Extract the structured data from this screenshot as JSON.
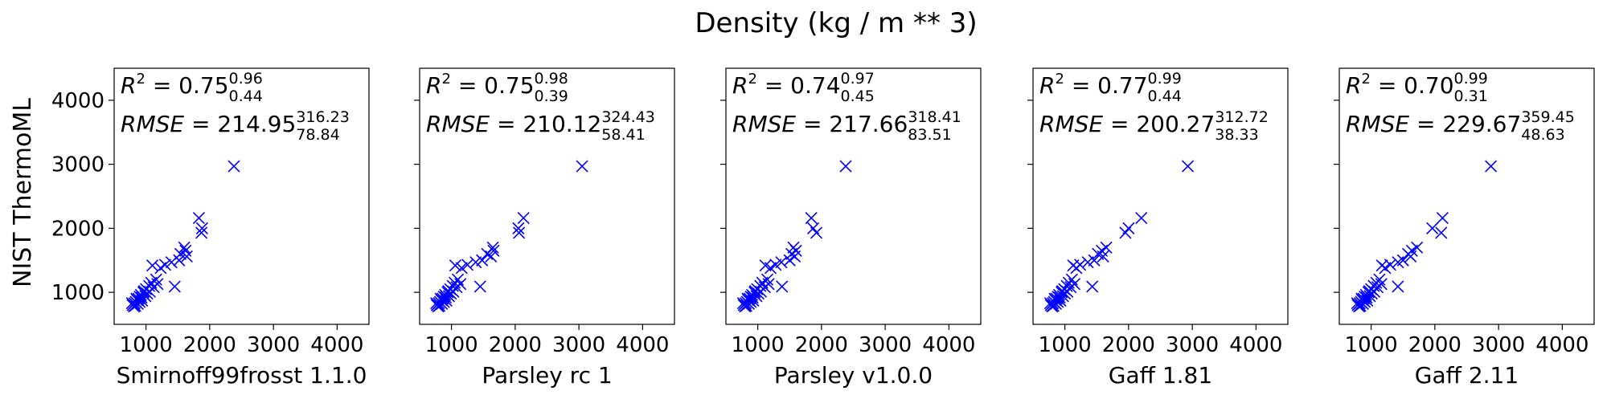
{
  "figure": {
    "title": "Density (kg / m ** 3)",
    "ylabel": "NIST ThermoML"
  },
  "chart_data": [
    {
      "type": "scatter",
      "xlabel": "Smirnoff99frosst 1.1.0",
      "xlim": [
        500,
        4500
      ],
      "ylim": [
        500,
        4500
      ],
      "xticks": [
        1000,
        2000,
        3000,
        4000
      ],
      "yticks": [
        1000,
        2000,
        3000,
        4000
      ],
      "marker": "x",
      "color": "#0000ff",
      "annotation": {
        "r2": "0.75",
        "r2_hi": "0.96",
        "r2_lo": "0.44",
        "rmse": "214.95",
        "rmse_hi": "316.23",
        "rmse_lo": "78.84"
      },
      "points": [
        [
          2380,
          2970
        ],
        [
          1830,
          2160
        ],
        [
          1880,
          2000
        ],
        [
          1870,
          1930
        ],
        [
          1600,
          1700
        ],
        [
          1620,
          1650
        ],
        [
          1540,
          1600
        ],
        [
          1640,
          1560
        ],
        [
          1520,
          1500
        ],
        [
          1450,
          1090
        ],
        [
          1400,
          1470
        ],
        [
          1300,
          1430
        ],
        [
          1230,
          1380
        ],
        [
          1100,
          1420
        ],
        [
          1160,
          1200
        ],
        [
          1080,
          1150
        ],
        [
          1050,
          1100
        ],
        [
          1000,
          1050
        ],
        [
          960,
          1000
        ],
        [
          920,
          960
        ],
        [
          900,
          930
        ],
        [
          880,
          900
        ],
        [
          860,
          880
        ],
        [
          840,
          850
        ],
        [
          820,
          830
        ],
        [
          800,
          810
        ],
        [
          790,
          800
        ],
        [
          810,
          780
        ],
        [
          870,
          820
        ],
        [
          940,
          870
        ],
        [
          990,
          940
        ],
        [
          1020,
          980
        ],
        [
          1120,
          1080
        ],
        [
          850,
          900
        ],
        [
          900,
          850
        ],
        [
          780,
          830
        ],
        [
          970,
          1020
        ],
        [
          1060,
          1010
        ],
        [
          1180,
          1130
        ],
        [
          930,
          920
        ],
        [
          830,
          790
        ]
      ]
    },
    {
      "type": "scatter",
      "xlabel": "Parsley rc 1",
      "xlim": [
        500,
        4500
      ],
      "ylim": [
        500,
        4500
      ],
      "xticks": [
        1000,
        2000,
        3000,
        4000
      ],
      "yticks": [
        1000,
        2000,
        3000,
        4000
      ],
      "marker": "x",
      "color": "#0000ff",
      "annotation": {
        "r2": "0.75",
        "r2_hi": "0.98",
        "r2_lo": "0.39",
        "rmse": "210.12",
        "rmse_hi": "324.43",
        "rmse_lo": "58.41"
      },
      "points": [
        [
          3050,
          2970
        ],
        [
          2130,
          2160
        ],
        [
          2050,
          2000
        ],
        [
          2060,
          1930
        ],
        [
          1650,
          1700
        ],
        [
          1660,
          1650
        ],
        [
          1560,
          1600
        ],
        [
          1620,
          1560
        ],
        [
          1480,
          1500
        ],
        [
          1450,
          1090
        ],
        [
          1380,
          1470
        ],
        [
          1250,
          1430
        ],
        [
          1160,
          1380
        ],
        [
          1060,
          1420
        ],
        [
          1100,
          1200
        ],
        [
          1050,
          1150
        ],
        [
          1020,
          1100
        ],
        [
          980,
          1050
        ],
        [
          940,
          1000
        ],
        [
          900,
          960
        ],
        [
          880,
          930
        ],
        [
          860,
          900
        ],
        [
          840,
          880
        ],
        [
          820,
          850
        ],
        [
          800,
          830
        ],
        [
          780,
          810
        ],
        [
          770,
          800
        ],
        [
          790,
          780
        ],
        [
          850,
          820
        ],
        [
          920,
          870
        ],
        [
          960,
          940
        ],
        [
          990,
          980
        ],
        [
          1080,
          1080
        ],
        [
          830,
          900
        ],
        [
          880,
          850
        ],
        [
          760,
          830
        ],
        [
          950,
          1020
        ],
        [
          1030,
          1010
        ],
        [
          1140,
          1130
        ],
        [
          910,
          920
        ],
        [
          810,
          790
        ]
      ]
    },
    {
      "type": "scatter",
      "xlabel": "Parsley v1.0.0",
      "xlim": [
        500,
        4500
      ],
      "ylim": [
        500,
        4500
      ],
      "xticks": [
        1000,
        2000,
        3000,
        4000
      ],
      "yticks": [
        1000,
        2000,
        3000,
        4000
      ],
      "marker": "x",
      "color": "#0000ff",
      "annotation": {
        "r2": "0.74",
        "r2_hi": "0.97",
        "r2_lo": "0.45",
        "rmse": "217.66",
        "rmse_hi": "318.41",
        "rmse_lo": "83.51"
      },
      "points": [
        [
          2380,
          2970
        ],
        [
          1840,
          2160
        ],
        [
          1870,
          2000
        ],
        [
          1920,
          1930
        ],
        [
          1560,
          1700
        ],
        [
          1600,
          1650
        ],
        [
          1530,
          1600
        ],
        [
          1580,
          1560
        ],
        [
          1500,
          1500
        ],
        [
          1380,
          1090
        ],
        [
          1370,
          1470
        ],
        [
          1280,
          1430
        ],
        [
          1200,
          1380
        ],
        [
          1120,
          1420
        ],
        [
          1150,
          1200
        ],
        [
          1070,
          1150
        ],
        [
          1040,
          1100
        ],
        [
          990,
          1050
        ],
        [
          950,
          1000
        ],
        [
          910,
          960
        ],
        [
          890,
          930
        ],
        [
          870,
          900
        ],
        [
          850,
          880
        ],
        [
          830,
          850
        ],
        [
          810,
          830
        ],
        [
          790,
          810
        ],
        [
          780,
          800
        ],
        [
          800,
          780
        ],
        [
          860,
          820
        ],
        [
          930,
          870
        ],
        [
          980,
          940
        ],
        [
          1010,
          980
        ],
        [
          1110,
          1080
        ],
        [
          840,
          900
        ],
        [
          890,
          850
        ],
        [
          770,
          830
        ],
        [
          960,
          1020
        ],
        [
          1050,
          1010
        ],
        [
          1170,
          1130
        ],
        [
          920,
          920
        ],
        [
          820,
          790
        ]
      ]
    },
    {
      "type": "scatter",
      "xlabel": "Gaff 1.81",
      "xlim": [
        500,
        4500
      ],
      "ylim": [
        500,
        4500
      ],
      "xticks": [
        1000,
        2000,
        3000,
        4000
      ],
      "yticks": [
        1000,
        2000,
        3000,
        4000
      ],
      "marker": "x",
      "color": "#0000ff",
      "annotation": {
        "r2": "0.77",
        "r2_hi": "0.99",
        "r2_lo": "0.44",
        "rmse": "200.27",
        "rmse_hi": "312.72",
        "rmse_lo": "38.33"
      },
      "points": [
        [
          2930,
          2970
        ],
        [
          2200,
          2160
        ],
        [
          2000,
          2000
        ],
        [
          1950,
          1930
        ],
        [
          1650,
          1700
        ],
        [
          1580,
          1650
        ],
        [
          1520,
          1600
        ],
        [
          1600,
          1560
        ],
        [
          1460,
          1500
        ],
        [
          1430,
          1090
        ],
        [
          1360,
          1470
        ],
        [
          1240,
          1430
        ],
        [
          1180,
          1380
        ],
        [
          1130,
          1420
        ],
        [
          1110,
          1200
        ],
        [
          1060,
          1150
        ],
        [
          1030,
          1100
        ],
        [
          990,
          1050
        ],
        [
          950,
          1000
        ],
        [
          910,
          960
        ],
        [
          890,
          930
        ],
        [
          870,
          900
        ],
        [
          850,
          880
        ],
        [
          830,
          850
        ],
        [
          810,
          830
        ],
        [
          790,
          810
        ],
        [
          780,
          800
        ],
        [
          800,
          780
        ],
        [
          860,
          820
        ],
        [
          930,
          870
        ],
        [
          970,
          940
        ],
        [
          1000,
          980
        ],
        [
          1090,
          1080
        ],
        [
          840,
          900
        ],
        [
          890,
          850
        ],
        [
          770,
          830
        ],
        [
          960,
          1020
        ],
        [
          1040,
          1010
        ],
        [
          1150,
          1130
        ],
        [
          920,
          920
        ],
        [
          820,
          790
        ]
      ]
    },
    {
      "type": "scatter",
      "xlabel": "Gaff 2.11",
      "xlim": [
        500,
        4500
      ],
      "ylim": [
        500,
        4500
      ],
      "xticks": [
        1000,
        2000,
        3000,
        4000
      ],
      "yticks": [
        1000,
        2000,
        3000,
        4000
      ],
      "marker": "x",
      "color": "#0000ff",
      "annotation": {
        "r2": "0.70",
        "r2_hi": "0.99",
        "r2_lo": "0.31",
        "rmse": "229.67",
        "rmse_hi": "359.45",
        "rmse_lo": "48.63"
      },
      "points": [
        [
          2880,
          2970
        ],
        [
          2120,
          2160
        ],
        [
          1960,
          2000
        ],
        [
          2100,
          1930
        ],
        [
          1720,
          1700
        ],
        [
          1640,
          1650
        ],
        [
          1580,
          1600
        ],
        [
          1620,
          1560
        ],
        [
          1500,
          1500
        ],
        [
          1420,
          1090
        ],
        [
          1420,
          1470
        ],
        [
          1300,
          1430
        ],
        [
          1220,
          1380
        ],
        [
          1170,
          1420
        ],
        [
          1130,
          1200
        ],
        [
          1080,
          1150
        ],
        [
          1040,
          1100
        ],
        [
          1000,
          1050
        ],
        [
          960,
          1000
        ],
        [
          920,
          960
        ],
        [
          900,
          930
        ],
        [
          880,
          900
        ],
        [
          860,
          880
        ],
        [
          840,
          850
        ],
        [
          820,
          830
        ],
        [
          800,
          810
        ],
        [
          790,
          800
        ],
        [
          810,
          780
        ],
        [
          870,
          820
        ],
        [
          940,
          870
        ],
        [
          980,
          940
        ],
        [
          1010,
          980
        ],
        [
          1100,
          1080
        ],
        [
          850,
          900
        ],
        [
          900,
          850
        ],
        [
          780,
          830
        ],
        [
          970,
          1020
        ],
        [
          1050,
          1010
        ],
        [
          1160,
          1130
        ],
        [
          930,
          920
        ],
        [
          830,
          790
        ]
      ]
    }
  ]
}
